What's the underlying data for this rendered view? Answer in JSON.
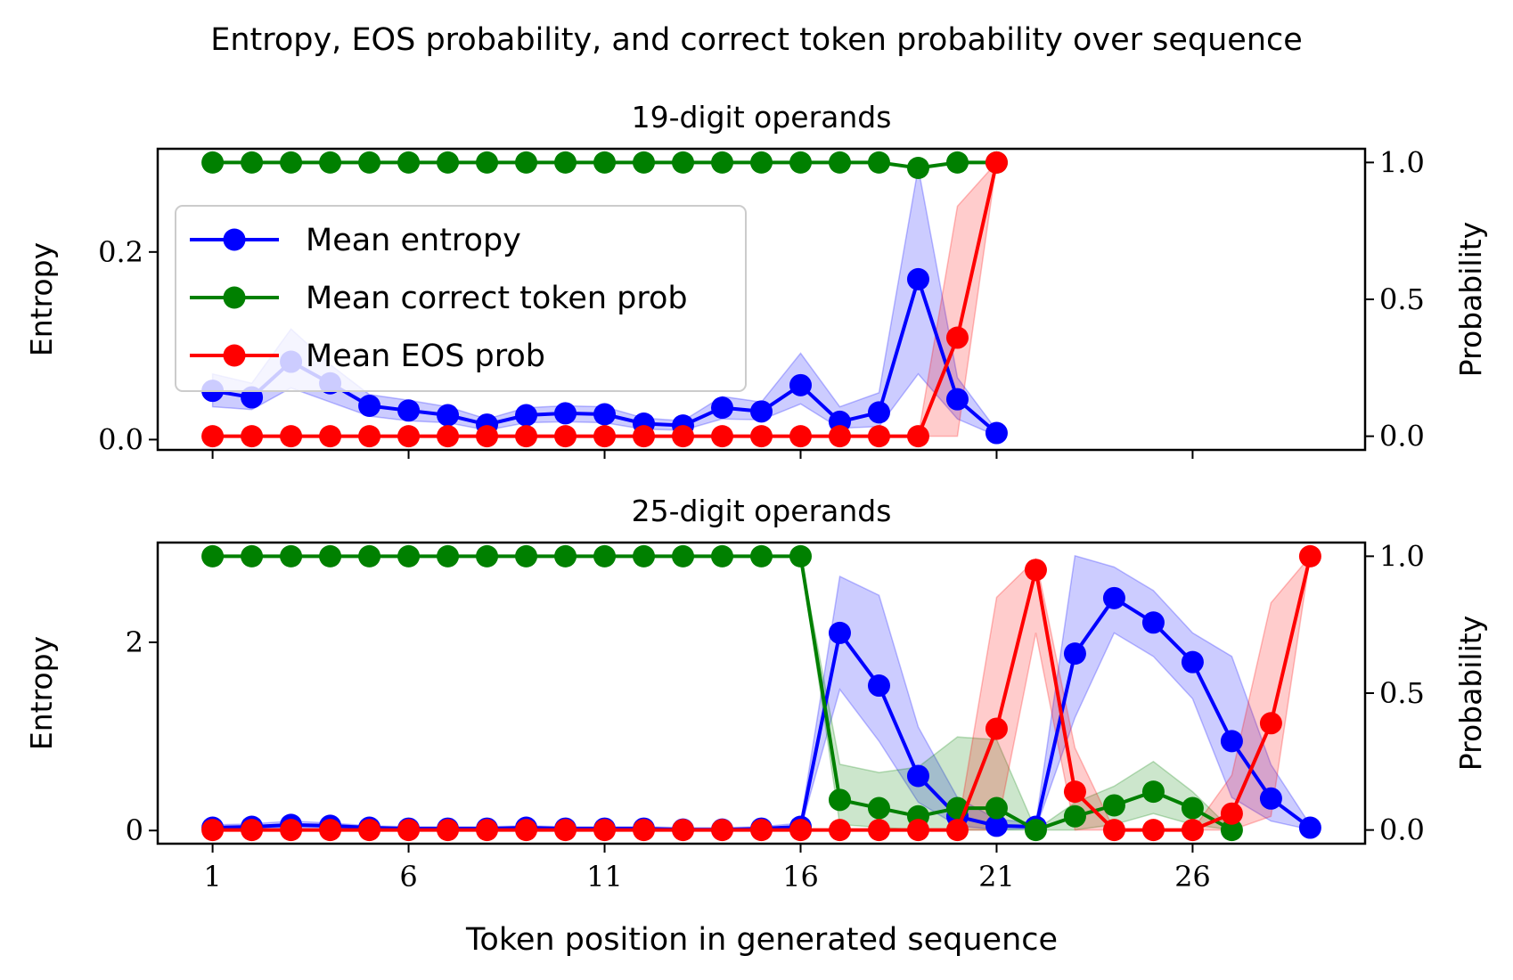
{
  "figure": {
    "title": "Entropy, EOS probability, and correct token probability over sequence",
    "xlabel": "Token position in generated sequence"
  },
  "legend": {
    "entries": [
      {
        "label": "Mean entropy",
        "color": "#0000ff"
      },
      {
        "label": "Mean correct token prob",
        "color": "#008000"
      },
      {
        "label": "Mean EOS prob",
        "color": "#ff0000"
      }
    ],
    "placement": "upper-left (top panel)"
  },
  "colors": {
    "entropy": "#0000ff",
    "correct": "#008000",
    "eos": "#ff0000"
  },
  "chart_data": [
    {
      "type": "line",
      "title": "19-digit operands",
      "ylabel": "Entropy",
      "y2label": "Probability",
      "xlim": [
        -0.4,
        30.4
      ],
      "ylim": [
        -0.011,
        0.31
      ],
      "y2lim": [
        -0.05,
        1.05
      ],
      "xticks": [
        1,
        6,
        11,
        16,
        21,
        26
      ],
      "xticklabels_shown": false,
      "yticks": [
        0.0,
        0.2
      ],
      "yticklabels": [
        "0.0",
        "0.2"
      ],
      "y2ticks": [
        0.0,
        0.5,
        1.0
      ],
      "y2ticklabels": [
        "0.0",
        "0.5",
        "1.0"
      ],
      "grid": false,
      "x": [
        1,
        2,
        3,
        4,
        5,
        6,
        7,
        8,
        9,
        10,
        11,
        12,
        13,
        14,
        15,
        16,
        17,
        18,
        19,
        20,
        21
      ],
      "series": [
        {
          "name": "Mean entropy",
          "axis": "left",
          "color": "#0000ff",
          "values": [
            0.052,
            0.045,
            0.083,
            0.06,
            0.036,
            0.031,
            0.026,
            0.016,
            0.026,
            0.028,
            0.027,
            0.017,
            0.015,
            0.034,
            0.03,
            0.058,
            0.019,
            0.029,
            0.171,
            0.043,
            0.007
          ],
          "band_low": [
            0.035,
            0.032,
            0.055,
            0.04,
            0.025,
            0.02,
            0.018,
            0.01,
            0.018,
            0.019,
            0.018,
            0.011,
            0.01,
            0.022,
            0.021,
            0.038,
            0.012,
            0.014,
            0.07,
            0.022,
            0.004
          ],
          "band_high": [
            0.07,
            0.06,
            0.118,
            0.08,
            0.048,
            0.042,
            0.035,
            0.022,
            0.034,
            0.036,
            0.035,
            0.023,
            0.02,
            0.046,
            0.04,
            0.092,
            0.035,
            0.05,
            0.29,
            0.066,
            0.01
          ]
        },
        {
          "name": "Mean correct token prob",
          "axis": "right",
          "color": "#008000",
          "values": [
            1,
            1,
            1,
            1,
            1,
            1,
            1,
            1,
            1,
            1,
            1,
            1,
            1,
            1,
            1,
            1,
            1,
            1,
            0.98,
            1,
            1
          ]
        },
        {
          "name": "Mean EOS prob",
          "axis": "right",
          "color": "#ff0000",
          "values": [
            0,
            0,
            0,
            0,
            0,
            0,
            0,
            0,
            0,
            0,
            0,
            0,
            0,
            0,
            0,
            0,
            0,
            0,
            0,
            0.36,
            1.0
          ],
          "band_low": [
            0,
            0,
            0,
            0,
            0,
            0,
            0,
            0,
            0,
            0,
            0,
            0,
            0,
            0,
            0,
            0,
            0,
            0,
            0,
            0,
            1.0
          ],
          "band_high": [
            0,
            0,
            0,
            0,
            0,
            0,
            0,
            0,
            0,
            0,
            0,
            0,
            0,
            0,
            0,
            0,
            0,
            0,
            0,
            0.84,
            1.0
          ]
        }
      ]
    },
    {
      "type": "line",
      "title": "25-digit operands",
      "ylabel": "Entropy",
      "y2label": "Probability",
      "xlim": [
        -0.4,
        30.4
      ],
      "ylim": [
        -0.14,
        3.06
      ],
      "y2lim": [
        -0.05,
        1.05
      ],
      "xticks": [
        1,
        6,
        11,
        16,
        21,
        26
      ],
      "xticklabels": [
        "1",
        "6",
        "11",
        "16",
        "21",
        "26"
      ],
      "yticks": [
        0,
        2
      ],
      "yticklabels": [
        "0",
        "2"
      ],
      "y2ticks": [
        0.0,
        0.5,
        1.0
      ],
      "y2ticklabels": [
        "0.0",
        "0.5",
        "1.0"
      ],
      "grid": false,
      "series": [
        {
          "name": "Mean entropy",
          "axis": "left",
          "color": "#0000ff",
          "x": [
            1,
            2,
            3,
            4,
            5,
            6,
            7,
            8,
            9,
            10,
            11,
            12,
            13,
            14,
            15,
            16,
            17,
            18,
            19,
            20,
            21,
            22,
            23,
            24,
            25,
            26,
            27,
            28,
            29
          ],
          "values": [
            0.03,
            0.04,
            0.06,
            0.05,
            0.03,
            0.02,
            0.02,
            0.02,
            0.03,
            0.02,
            0.02,
            0.02,
            0.01,
            0.01,
            0.02,
            0.04,
            2.1,
            1.54,
            0.58,
            0.15,
            0.05,
            0.04,
            1.88,
            2.47,
            2.21,
            1.79,
            0.95,
            0.34,
            0.03
          ],
          "band_low": [
            0.01,
            0.02,
            0.03,
            0.03,
            0.01,
            0.01,
            0.01,
            0.01,
            0.01,
            0.01,
            0.01,
            0.01,
            0.0,
            0.0,
            0.01,
            0.02,
            1.5,
            0.95,
            0.3,
            0.05,
            0.01,
            0.02,
            1.2,
            2.1,
            1.85,
            1.4,
            0.35,
            0.1,
            0.01
          ],
          "band_high": [
            0.06,
            0.07,
            0.1,
            0.08,
            0.05,
            0.04,
            0.04,
            0.04,
            0.05,
            0.04,
            0.04,
            0.04,
            0.03,
            0.03,
            0.04,
            0.08,
            2.7,
            2.5,
            1.1,
            0.35,
            0.12,
            0.08,
            2.92,
            2.8,
            2.55,
            2.1,
            1.85,
            0.7,
            0.06
          ]
        },
        {
          "name": "Mean correct token prob",
          "axis": "right",
          "color": "#008000",
          "x": [
            1,
            2,
            3,
            4,
            5,
            6,
            7,
            8,
            9,
            10,
            11,
            12,
            13,
            14,
            15,
            16,
            17,
            18,
            19,
            20,
            21,
            22,
            23,
            24,
            25,
            26,
            27
          ],
          "values": [
            1,
            1,
            1,
            1,
            1,
            1,
            1,
            1,
            1,
            1,
            1,
            1,
            1,
            1,
            1,
            1,
            0.11,
            0.08,
            0.05,
            0.08,
            0.08,
            0.0,
            0.05,
            0.09,
            0.14,
            0.08,
            0.0
          ],
          "band_low": [
            1,
            1,
            1,
            1,
            1,
            1,
            1,
            1,
            1,
            1,
            1,
            1,
            1,
            1,
            1,
            1,
            0.02,
            0.01,
            0.0,
            0.0,
            0.0,
            0.0,
            0.0,
            0.02,
            0.06,
            0.02,
            0.0
          ],
          "band_high": [
            1,
            1,
            1,
            1,
            1,
            1,
            1,
            1,
            1,
            1,
            1,
            1,
            1,
            1,
            1,
            1,
            0.24,
            0.21,
            0.23,
            0.34,
            0.33,
            0.0,
            0.1,
            0.16,
            0.25,
            0.14,
            0.0
          ]
        },
        {
          "name": "Mean EOS prob",
          "axis": "right",
          "color": "#ff0000",
          "x": [
            1,
            2,
            3,
            4,
            5,
            6,
            7,
            8,
            9,
            10,
            11,
            12,
            13,
            14,
            15,
            16,
            17,
            18,
            19,
            20,
            21,
            22,
            23,
            24,
            25,
            26,
            27,
            28,
            29
          ],
          "values": [
            0,
            0,
            0,
            0,
            0,
            0,
            0,
            0,
            0,
            0,
            0,
            0,
            0,
            0,
            0,
            0,
            0,
            0,
            0,
            0,
            0.37,
            0.95,
            0.14,
            0,
            0,
            0,
            0.06,
            0.39,
            1.0
          ],
          "band_low": [
            0,
            0,
            0,
            0,
            0,
            0,
            0,
            0,
            0,
            0,
            0,
            0,
            0,
            0,
            0,
            0,
            0,
            0,
            0,
            0,
            0,
            0.72,
            0.0,
            0,
            0,
            0,
            0.0,
            0.05,
            1.0
          ],
          "band_high": [
            0,
            0,
            0,
            0,
            0,
            0,
            0,
            0,
            0,
            0,
            0,
            0,
            0,
            0,
            0,
            0,
            0,
            0,
            0,
            0,
            0.85,
            0.99,
            0.3,
            0,
            0,
            0,
            0.2,
            0.83,
            1.0
          ]
        }
      ]
    }
  ]
}
